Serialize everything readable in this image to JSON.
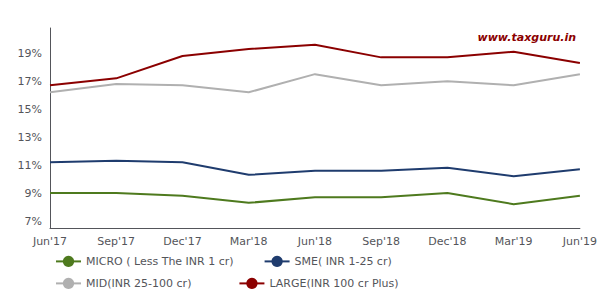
{
  "chart_data": {
    "type": "line",
    "categories": [
      "Jun'17",
      "Sep'17",
      "Dec'17",
      "Mar'18",
      "Jun'18",
      "Sep'18",
      "Dec'18",
      "Mar'19",
      "Jun'19"
    ],
    "series": [
      {
        "name": "MICRO ( Less The INR 1 cr)",
        "color": "#4e7a1e",
        "values": [
          9.0,
          9.0,
          8.8,
          8.3,
          8.7,
          8.7,
          9.0,
          8.2,
          8.8
        ]
      },
      {
        "name": "SME( INR 1-25 cr)",
        "color": "#1f3c6e",
        "values": [
          11.2,
          11.3,
          11.2,
          10.3,
          10.6,
          10.6,
          10.8,
          10.2,
          10.7
        ]
      },
      {
        "name": "MID(INR 25-100 cr)",
        "color": "#b0b0b0",
        "values": [
          16.2,
          16.8,
          16.7,
          16.2,
          17.5,
          16.7,
          17.0,
          16.7,
          17.5
        ]
      },
      {
        "name": "LARGE(INR 100 cr Plus)",
        "color": "#8b0000",
        "values": [
          16.7,
          17.2,
          18.8,
          19.3,
          19.6,
          18.7,
          18.7,
          19.1,
          18.3
        ]
      }
    ],
    "ylim": [
      6.5,
      20.8
    ],
    "yticks": [
      {
        "value": 7,
        "label": "7%"
      },
      {
        "value": 9,
        "label": "9%"
      },
      {
        "value": 11,
        "label": "11%"
      },
      {
        "value": 13,
        "label": "13%"
      },
      {
        "value": 15,
        "label": "15%"
      },
      {
        "value": 17,
        "label": "17%"
      },
      {
        "value": 19,
        "label": "19%"
      }
    ],
    "annotations": [
      {
        "text": "www.taxguru.in",
        "color": "#8b0000"
      }
    ],
    "grid": false,
    "legend": "bottom"
  }
}
